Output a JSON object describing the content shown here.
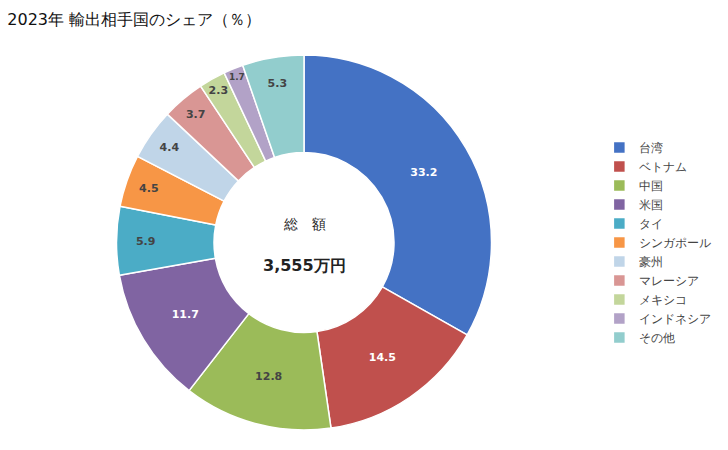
{
  "chart_data": {
    "type": "donut",
    "title": "2023年 輸出相手国のシェア（％）",
    "categories": [
      "台湾",
      "ベトナム",
      "中国",
      "米国",
      "タイ",
      "シンガポール",
      "豪州",
      "マレーシア",
      "メキシコ",
      "インドネシア",
      "その他"
    ],
    "values": [
      33.2,
      14.5,
      12.8,
      11.7,
      5.9,
      4.5,
      4.4,
      3.7,
      2.3,
      1.7,
      5.3
    ],
    "colors": [
      "#4472C4",
      "#C0504D",
      "#9BBB59",
      "#8064A2",
      "#4BACC6",
      "#F79646",
      "#C0D5E8",
      "#D99694",
      "#C3D69B",
      "#B2A2C7",
      "#92CDCD"
    ],
    "data_labels": true,
    "legend": "right",
    "annotations": [
      "総　額",
      "3,555万円"
    ]
  }
}
